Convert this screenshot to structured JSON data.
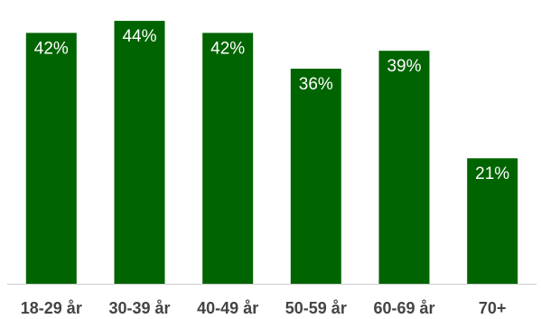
{
  "chart_data": {
    "type": "bar",
    "categories": [
      "18-29 år",
      "30-39 år",
      "40-49 år",
      "50-59 år",
      "60-69 år",
      "70+"
    ],
    "values": [
      42,
      44,
      42,
      36,
      39,
      21
    ],
    "value_labels": [
      "42%",
      "44%",
      "42%",
      "36%",
      "39%",
      "21%"
    ],
    "unit": "%",
    "ylim": [
      0,
      47.5
    ],
    "grid": false,
    "legend": "none",
    "title": "",
    "xlabel": "",
    "ylabel": "",
    "colors": {
      "bar": "#006400",
      "bar_label": "#ffffff",
      "tick_label": "#444444",
      "axis": "#cccccc"
    }
  }
}
